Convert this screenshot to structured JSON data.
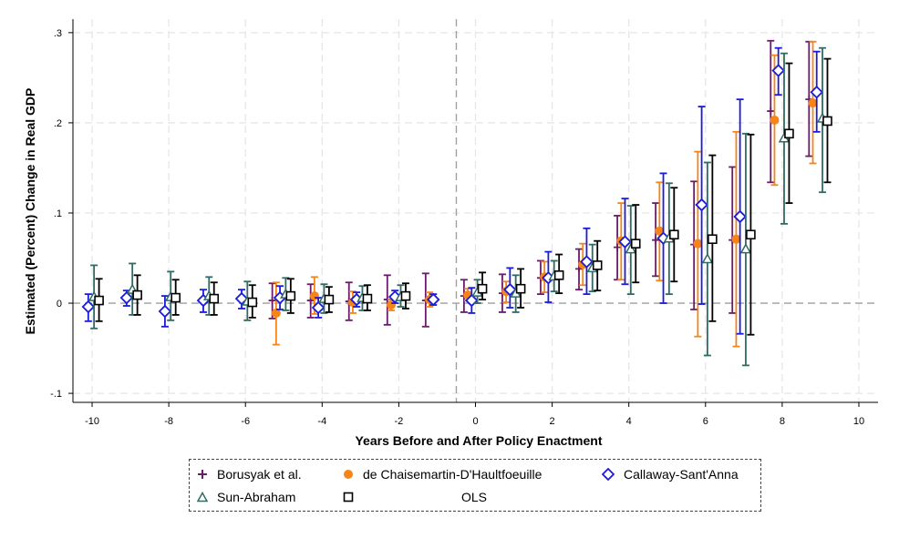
{
  "chart_data": {
    "type": "scatter",
    "xlabel": "Years Before and After Policy Enactment",
    "ylabel": "Estimated (Percent) Change in Real GDP",
    "xlim": [
      -10.5,
      10.5
    ],
    "ylim": [
      -0.11,
      0.315
    ],
    "x_ticks": [
      -10,
      -8,
      -6,
      -4,
      -2,
      0,
      2,
      4,
      6,
      8,
      10
    ],
    "x_tick_labels": [
      "-10",
      "-8",
      "-6",
      "-4",
      "-2",
      "0",
      "2",
      "4",
      "6",
      "8",
      "10"
    ],
    "y_ticks": [
      -0.1,
      0,
      0.1,
      0.2,
      0.3
    ],
    "y_tick_labels": [
      "-.1",
      "0",
      ".1",
      ".2",
      ".3"
    ],
    "grid": true,
    "reference_lines": {
      "x": -0.5,
      "y": 0
    },
    "legend_position": "bottom",
    "series": [
      {
        "name": "Borusyak et al.",
        "color": "#6a1b6a",
        "marker": "plus",
        "offset": -0.3,
        "points": [
          {
            "x": -5,
            "y": 0.003,
            "lo": -0.017,
            "hi": 0.022
          },
          {
            "x": -4,
            "y": 0.003,
            "lo": -0.016,
            "hi": 0.021
          },
          {
            "x": -3,
            "y": 0.002,
            "lo": -0.019,
            "hi": 0.023
          },
          {
            "x": -2,
            "y": 0.004,
            "lo": -0.024,
            "hi": 0.031
          },
          {
            "x": -1,
            "y": 0.003,
            "lo": -0.026,
            "hi": 0.033
          },
          {
            "x": 0,
            "y": 0.008,
            "lo": -0.01,
            "hi": 0.026
          },
          {
            "x": 1,
            "y": 0.011,
            "lo": -0.01,
            "hi": 0.032
          },
          {
            "x": 2,
            "y": 0.028,
            "lo": 0.01,
            "hi": 0.047
          },
          {
            "x": 3,
            "y": 0.038,
            "lo": 0.015,
            "hi": 0.06
          },
          {
            "x": 4,
            "y": 0.062,
            "lo": 0.026,
            "hi": 0.097
          },
          {
            "x": 5,
            "y": 0.07,
            "lo": 0.03,
            "hi": 0.111
          },
          {
            "x": 6,
            "y": 0.065,
            "lo": -0.007,
            "hi": 0.135
          },
          {
            "x": 7,
            "y": 0.07,
            "lo": -0.011,
            "hi": 0.151
          },
          {
            "x": 8,
            "y": 0.213,
            "lo": 0.134,
            "hi": 0.291
          },
          {
            "x": 9,
            "y": 0.226,
            "lo": 0.163,
            "hi": 0.29
          }
        ]
      },
      {
        "name": "de Chaisemartin-D'Haultfoeuille",
        "color": "#f58518",
        "marker": "circle",
        "offset": -0.2,
        "points": [
          {
            "x": -5,
            "y": -0.011,
            "lo": -0.046,
            "hi": 0.023
          },
          {
            "x": -4,
            "y": 0.008,
            "lo": -0.012,
            "hi": 0.029
          },
          {
            "x": -3,
            "y": 0.001,
            "lo": -0.011,
            "hi": 0.013
          },
          {
            "x": -2,
            "y": -0.002,
            "lo": -0.008,
            "hi": 0.004
          },
          {
            "x": -1,
            "y": 0.004,
            "lo": -0.004,
            "hi": 0.012
          },
          {
            "x": 0,
            "y": 0.009,
            "lo": 0.003,
            "hi": 0.016
          },
          {
            "x": 1,
            "y": 0.013,
            "lo": 0.001,
            "hi": 0.024
          },
          {
            "x": 2,
            "y": 0.029,
            "lo": 0.012,
            "hi": 0.046
          },
          {
            "x": 3,
            "y": 0.043,
            "lo": 0.02,
            "hi": 0.066
          },
          {
            "x": 4,
            "y": 0.069,
            "lo": 0.026,
            "hi": 0.111
          },
          {
            "x": 5,
            "y": 0.08,
            "lo": 0.025,
            "hi": 0.134
          },
          {
            "x": 6,
            "y": 0.066,
            "lo": -0.037,
            "hi": 0.168
          },
          {
            "x": 7,
            "y": 0.071,
            "lo": -0.048,
            "hi": 0.19
          },
          {
            "x": 8,
            "y": 0.203,
            "lo": 0.131,
            "hi": 0.275
          },
          {
            "x": 9,
            "y": 0.222,
            "lo": 0.155,
            "hi": 0.29
          }
        ]
      },
      {
        "name": "Callaway-Sant'Anna",
        "color": "#1a1adb",
        "marker": "diamond",
        "offset": -0.1,
        "points": [
          {
            "x": -10,
            "y": -0.004,
            "lo": -0.02,
            "hi": 0.01
          },
          {
            "x": -9,
            "y": 0.006,
            "lo": -0.003,
            "hi": 0.014
          },
          {
            "x": -8,
            "y": -0.009,
            "lo": -0.026,
            "hi": 0.008
          },
          {
            "x": -7,
            "y": 0.003,
            "lo": -0.01,
            "hi": 0.015
          },
          {
            "x": -6,
            "y": 0.005,
            "lo": -0.006,
            "hi": 0.015
          },
          {
            "x": -5,
            "y": 0.006,
            "lo": -0.007,
            "hi": 0.019
          },
          {
            "x": -4,
            "y": -0.005,
            "lo": -0.016,
            "hi": 0.006
          },
          {
            "x": -3,
            "y": 0.004,
            "lo": -0.004,
            "hi": 0.012
          },
          {
            "x": -2,
            "y": 0.007,
            "lo": 0.0,
            "hi": 0.014
          },
          {
            "x": -1,
            "y": 0.004,
            "lo": -0.002,
            "hi": 0.01
          },
          {
            "x": 0,
            "y": 0.003,
            "lo": -0.011,
            "hi": 0.017
          },
          {
            "x": 1,
            "y": 0.015,
            "lo": -0.005,
            "hi": 0.039
          },
          {
            "x": 2,
            "y": 0.028,
            "lo": 0.001,
            "hi": 0.057
          },
          {
            "x": 3,
            "y": 0.046,
            "lo": 0.01,
            "hi": 0.083
          },
          {
            "x": 4,
            "y": 0.068,
            "lo": 0.021,
            "hi": 0.116
          },
          {
            "x": 5,
            "y": 0.072,
            "lo": 0.0,
            "hi": 0.144
          },
          {
            "x": 6,
            "y": 0.109,
            "lo": -0.001,
            "hi": 0.218
          },
          {
            "x": 7,
            "y": 0.096,
            "lo": -0.034,
            "hi": 0.226
          },
          {
            "x": 8,
            "y": 0.258,
            "lo": 0.231,
            "hi": 0.283
          },
          {
            "x": 9,
            "y": 0.234,
            "lo": 0.19,
            "hi": 0.279
          }
        ]
      },
      {
        "name": "Sun-Abraham",
        "color": "#2e6b62",
        "marker": "triangle",
        "offset": 0.05,
        "points": [
          {
            "x": -10,
            "y": 0.007,
            "lo": -0.028,
            "hi": 0.042
          },
          {
            "x": -9,
            "y": 0.015,
            "lo": -0.013,
            "hi": 0.044
          },
          {
            "x": -8,
            "y": 0.007,
            "lo": -0.019,
            "hi": 0.035
          },
          {
            "x": -7,
            "y": 0.008,
            "lo": -0.013,
            "hi": 0.029
          },
          {
            "x": -6,
            "y": 0.002,
            "lo": -0.019,
            "hi": 0.024
          },
          {
            "x": -5,
            "y": 0.01,
            "lo": -0.008,
            "hi": 0.028
          },
          {
            "x": -4,
            "y": 0.005,
            "lo": -0.011,
            "hi": 0.021
          },
          {
            "x": -3,
            "y": 0.006,
            "lo": -0.008,
            "hi": 0.019
          },
          {
            "x": -2,
            "y": 0.007,
            "lo": -0.004,
            "hi": 0.02
          },
          {
            "x": 0,
            "y": 0.012,
            "lo": 0.0,
            "hi": 0.026
          },
          {
            "x": 1,
            "y": 0.011,
            "lo": -0.01,
            "hi": 0.031
          },
          {
            "x": 2,
            "y": 0.03,
            "lo": 0.013,
            "hi": 0.047
          },
          {
            "x": 3,
            "y": 0.039,
            "lo": 0.013,
            "hi": 0.065
          },
          {
            "x": 4,
            "y": 0.06,
            "lo": 0.01,
            "hi": 0.108
          },
          {
            "x": 5,
            "y": 0.072,
            "lo": 0.01,
            "hi": 0.133
          },
          {
            "x": 6,
            "y": 0.049,
            "lo": -0.058,
            "hi": 0.156
          },
          {
            "x": 7,
            "y": 0.06,
            "lo": -0.069,
            "hi": 0.188
          },
          {
            "x": 8,
            "y": 0.183,
            "lo": 0.088,
            "hi": 0.277
          },
          {
            "x": 9,
            "y": 0.205,
            "lo": 0.123,
            "hi": 0.283
          }
        ]
      },
      {
        "name": "OLS",
        "color": "#000000",
        "marker": "square",
        "offset": 0.18,
        "points": [
          {
            "x": -10,
            "y": 0.003,
            "lo": -0.02,
            "hi": 0.027
          },
          {
            "x": -9,
            "y": 0.009,
            "lo": -0.013,
            "hi": 0.031
          },
          {
            "x": -8,
            "y": 0.006,
            "lo": -0.013,
            "hi": 0.026
          },
          {
            "x": -7,
            "y": 0.005,
            "lo": -0.013,
            "hi": 0.023
          },
          {
            "x": -6,
            "y": 0.001,
            "lo": -0.016,
            "hi": 0.02
          },
          {
            "x": -5,
            "y": 0.008,
            "lo": -0.011,
            "hi": 0.027
          },
          {
            "x": -4,
            "y": 0.004,
            "lo": -0.01,
            "hi": 0.018
          },
          {
            "x": -3,
            "y": 0.005,
            "lo": -0.008,
            "hi": 0.02
          },
          {
            "x": -2,
            "y": 0.008,
            "lo": -0.006,
            "hi": 0.022
          },
          {
            "x": 0,
            "y": 0.016,
            "lo": 0.004,
            "hi": 0.034
          },
          {
            "x": 1,
            "y": 0.016,
            "lo": -0.005,
            "hi": 0.038
          },
          {
            "x": 2,
            "y": 0.031,
            "lo": 0.011,
            "hi": 0.054
          },
          {
            "x": 3,
            "y": 0.042,
            "lo": 0.014,
            "hi": 0.069
          },
          {
            "x": 4,
            "y": 0.066,
            "lo": 0.023,
            "hi": 0.109
          },
          {
            "x": 5,
            "y": 0.076,
            "lo": 0.024,
            "hi": 0.128
          },
          {
            "x": 6,
            "y": 0.071,
            "lo": -0.02,
            "hi": 0.164
          },
          {
            "x": 7,
            "y": 0.076,
            "lo": -0.035,
            "hi": 0.187
          },
          {
            "x": 8,
            "y": 0.188,
            "lo": 0.111,
            "hi": 0.266
          },
          {
            "x": 9,
            "y": 0.202,
            "lo": 0.134,
            "hi": 0.271
          }
        ]
      }
    ]
  }
}
